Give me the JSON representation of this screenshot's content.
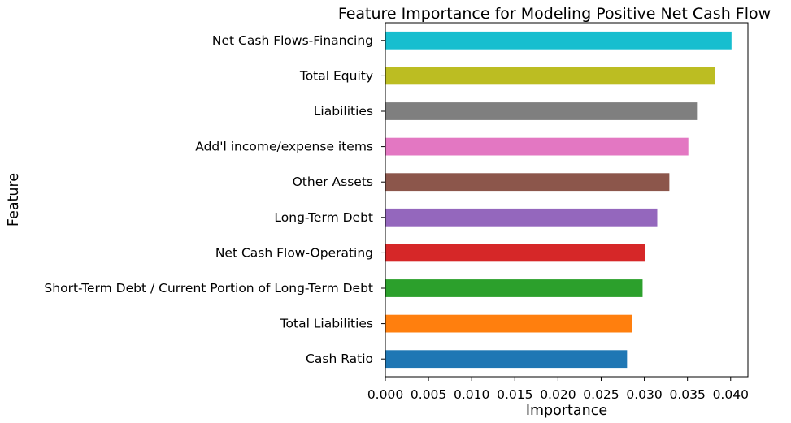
{
  "chart_data": {
    "type": "bar",
    "orientation": "horizontal",
    "title": "Feature Importance for Modeling Positive Net Cash Flow",
    "xlabel": "Importance",
    "ylabel": "Feature",
    "xlim": [
      0.0,
      0.042
    ],
    "x_ticks": [
      "0.000",
      "0.005",
      "0.010",
      "0.015",
      "0.020",
      "0.025",
      "0.030",
      "0.035",
      "0.040"
    ],
    "grid": false,
    "legend": "none",
    "bars": [
      {
        "label": "Cash Ratio",
        "value": 0.028,
        "color": "#1f77b4"
      },
      {
        "label": "Total Liabilities",
        "value": 0.0286,
        "color": "#ff7f0e"
      },
      {
        "label": "Short-Term Debt / Current Portion of Long-Term Debt",
        "value": 0.0298,
        "color": "#2ca02c"
      },
      {
        "label": "Net Cash Flow-Operating",
        "value": 0.0301,
        "color": "#d62728"
      },
      {
        "label": "Long-Term Debt",
        "value": 0.0315,
        "color": "#9467bd"
      },
      {
        "label": "Other Assets",
        "value": 0.0329,
        "color": "#8c564b"
      },
      {
        "label": "Add'l income/expense items",
        "value": 0.0351,
        "color": "#e377c2"
      },
      {
        "label": "Liabilities",
        "value": 0.0361,
        "color": "#7f7f7f"
      },
      {
        "label": "Total Equity",
        "value": 0.0382,
        "color": "#bcbd22"
      },
      {
        "label": "Net Cash Flows-Financing",
        "value": 0.0401,
        "color": "#17becf"
      }
    ]
  }
}
